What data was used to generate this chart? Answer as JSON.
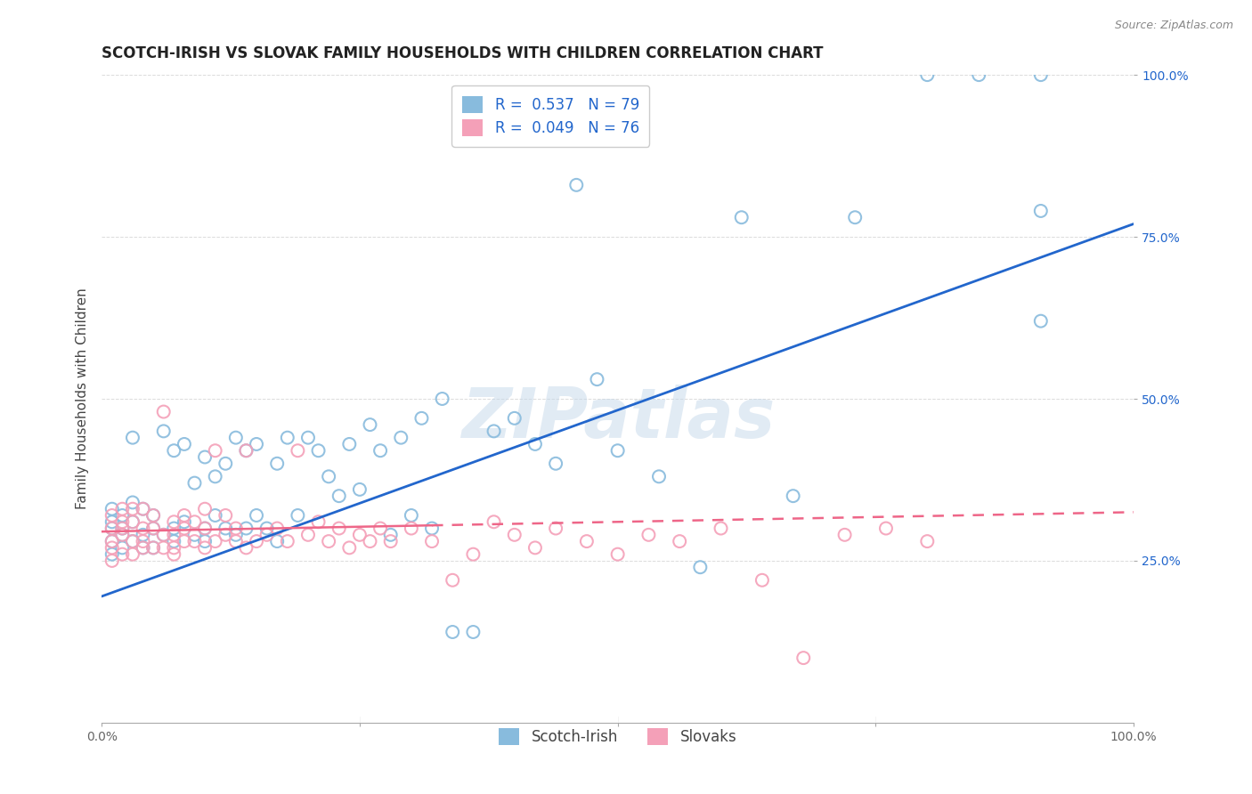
{
  "title": "SCOTCH-IRISH VS SLOVAK FAMILY HOUSEHOLDS WITH CHILDREN CORRELATION CHART",
  "source": "Source: ZipAtlas.com",
  "ylabel": "Family Households with Children",
  "xlim": [
    0,
    1
  ],
  "ylim": [
    0,
    1
  ],
  "xtick_positions": [
    0.0,
    0.25,
    0.5,
    0.75,
    1.0
  ],
  "xticklabels": [
    "0.0%",
    "",
    "",
    "",
    "100.0%"
  ],
  "ytick_positions": [
    0.25,
    0.5,
    0.75,
    1.0
  ],
  "yticklabels": [
    "25.0%",
    "50.0%",
    "75.0%",
    "100.0%"
  ],
  "watermark": "ZIPatlas",
  "scotch_irish_color": "#88bbdd",
  "slovak_color": "#f4a0b8",
  "trend_scotch_irish_color": "#2266cc",
  "trend_slovak_color": "#ee6688",
  "background_color": "#ffffff",
  "grid_color": "#cccccc",
  "title_fontsize": 12,
  "axis_label_fontsize": 11,
  "tick_fontsize": 10,
  "legend_fontsize": 12,
  "si_trend_x0": 0.0,
  "si_trend_y0": 0.195,
  "si_trend_x1": 1.0,
  "si_trend_y1": 0.77,
  "sk_trend_x0": 0.0,
  "sk_trend_y0": 0.295,
  "sk_trend_x1": 1.0,
  "sk_trend_y1": 0.325,
  "scotch_irish_x": [
    0.01,
    0.01,
    0.01,
    0.01,
    0.01,
    0.02,
    0.02,
    0.02,
    0.02,
    0.03,
    0.03,
    0.03,
    0.03,
    0.04,
    0.04,
    0.04,
    0.05,
    0.05,
    0.05,
    0.06,
    0.06,
    0.07,
    0.07,
    0.07,
    0.08,
    0.08,
    0.09,
    0.09,
    0.1,
    0.1,
    0.1,
    0.11,
    0.11,
    0.12,
    0.12,
    0.13,
    0.13,
    0.14,
    0.14,
    0.15,
    0.15,
    0.16,
    0.17,
    0.17,
    0.18,
    0.19,
    0.2,
    0.21,
    0.22,
    0.23,
    0.24,
    0.25,
    0.26,
    0.27,
    0.28,
    0.29,
    0.3,
    0.31,
    0.32,
    0.33,
    0.34,
    0.36,
    0.38,
    0.4,
    0.42,
    0.44,
    0.46,
    0.48,
    0.5,
    0.54,
    0.58,
    0.62,
    0.67,
    0.73,
    0.8,
    0.85,
    0.91,
    0.91,
    0.91
  ],
  "scotch_irish_y": [
    0.28,
    0.31,
    0.33,
    0.3,
    0.26,
    0.29,
    0.32,
    0.27,
    0.3,
    0.28,
    0.31,
    0.34,
    0.44,
    0.29,
    0.27,
    0.33,
    0.3,
    0.32,
    0.27,
    0.29,
    0.45,
    0.28,
    0.3,
    0.42,
    0.31,
    0.43,
    0.29,
    0.37,
    0.3,
    0.41,
    0.28,
    0.32,
    0.38,
    0.3,
    0.4,
    0.29,
    0.44,
    0.3,
    0.42,
    0.32,
    0.43,
    0.3,
    0.28,
    0.4,
    0.44,
    0.32,
    0.44,
    0.42,
    0.38,
    0.35,
    0.43,
    0.36,
    0.46,
    0.42,
    0.29,
    0.44,
    0.32,
    0.47,
    0.3,
    0.5,
    0.14,
    0.14,
    0.45,
    0.47,
    0.43,
    0.4,
    0.83,
    0.53,
    0.42,
    0.38,
    0.24,
    0.78,
    0.35,
    0.78,
    1.0,
    1.0,
    1.0,
    0.79,
    0.62
  ],
  "slovak_x": [
    0.01,
    0.01,
    0.01,
    0.01,
    0.01,
    0.02,
    0.02,
    0.02,
    0.02,
    0.02,
    0.03,
    0.03,
    0.03,
    0.03,
    0.04,
    0.04,
    0.04,
    0.04,
    0.05,
    0.05,
    0.05,
    0.06,
    0.06,
    0.06,
    0.07,
    0.07,
    0.07,
    0.07,
    0.08,
    0.08,
    0.08,
    0.09,
    0.09,
    0.1,
    0.1,
    0.1,
    0.11,
    0.11,
    0.12,
    0.12,
    0.13,
    0.13,
    0.14,
    0.14,
    0.15,
    0.16,
    0.17,
    0.18,
    0.19,
    0.2,
    0.21,
    0.22,
    0.23,
    0.24,
    0.25,
    0.26,
    0.27,
    0.28,
    0.3,
    0.32,
    0.34,
    0.36,
    0.38,
    0.4,
    0.42,
    0.44,
    0.47,
    0.5,
    0.53,
    0.56,
    0.6,
    0.64,
    0.68,
    0.72,
    0.76,
    0.8
  ],
  "slovak_y": [
    0.28,
    0.3,
    0.32,
    0.27,
    0.25,
    0.29,
    0.31,
    0.26,
    0.3,
    0.33,
    0.28,
    0.31,
    0.26,
    0.33,
    0.27,
    0.3,
    0.28,
    0.33,
    0.27,
    0.3,
    0.32,
    0.27,
    0.29,
    0.48,
    0.26,
    0.29,
    0.31,
    0.27,
    0.3,
    0.28,
    0.32,
    0.28,
    0.31,
    0.27,
    0.3,
    0.33,
    0.28,
    0.42,
    0.29,
    0.32,
    0.28,
    0.3,
    0.27,
    0.42,
    0.28,
    0.29,
    0.3,
    0.28,
    0.42,
    0.29,
    0.31,
    0.28,
    0.3,
    0.27,
    0.29,
    0.28,
    0.3,
    0.28,
    0.3,
    0.28,
    0.22,
    0.26,
    0.31,
    0.29,
    0.27,
    0.3,
    0.28,
    0.26,
    0.29,
    0.28,
    0.3,
    0.22,
    0.1,
    0.29,
    0.3,
    0.28
  ]
}
